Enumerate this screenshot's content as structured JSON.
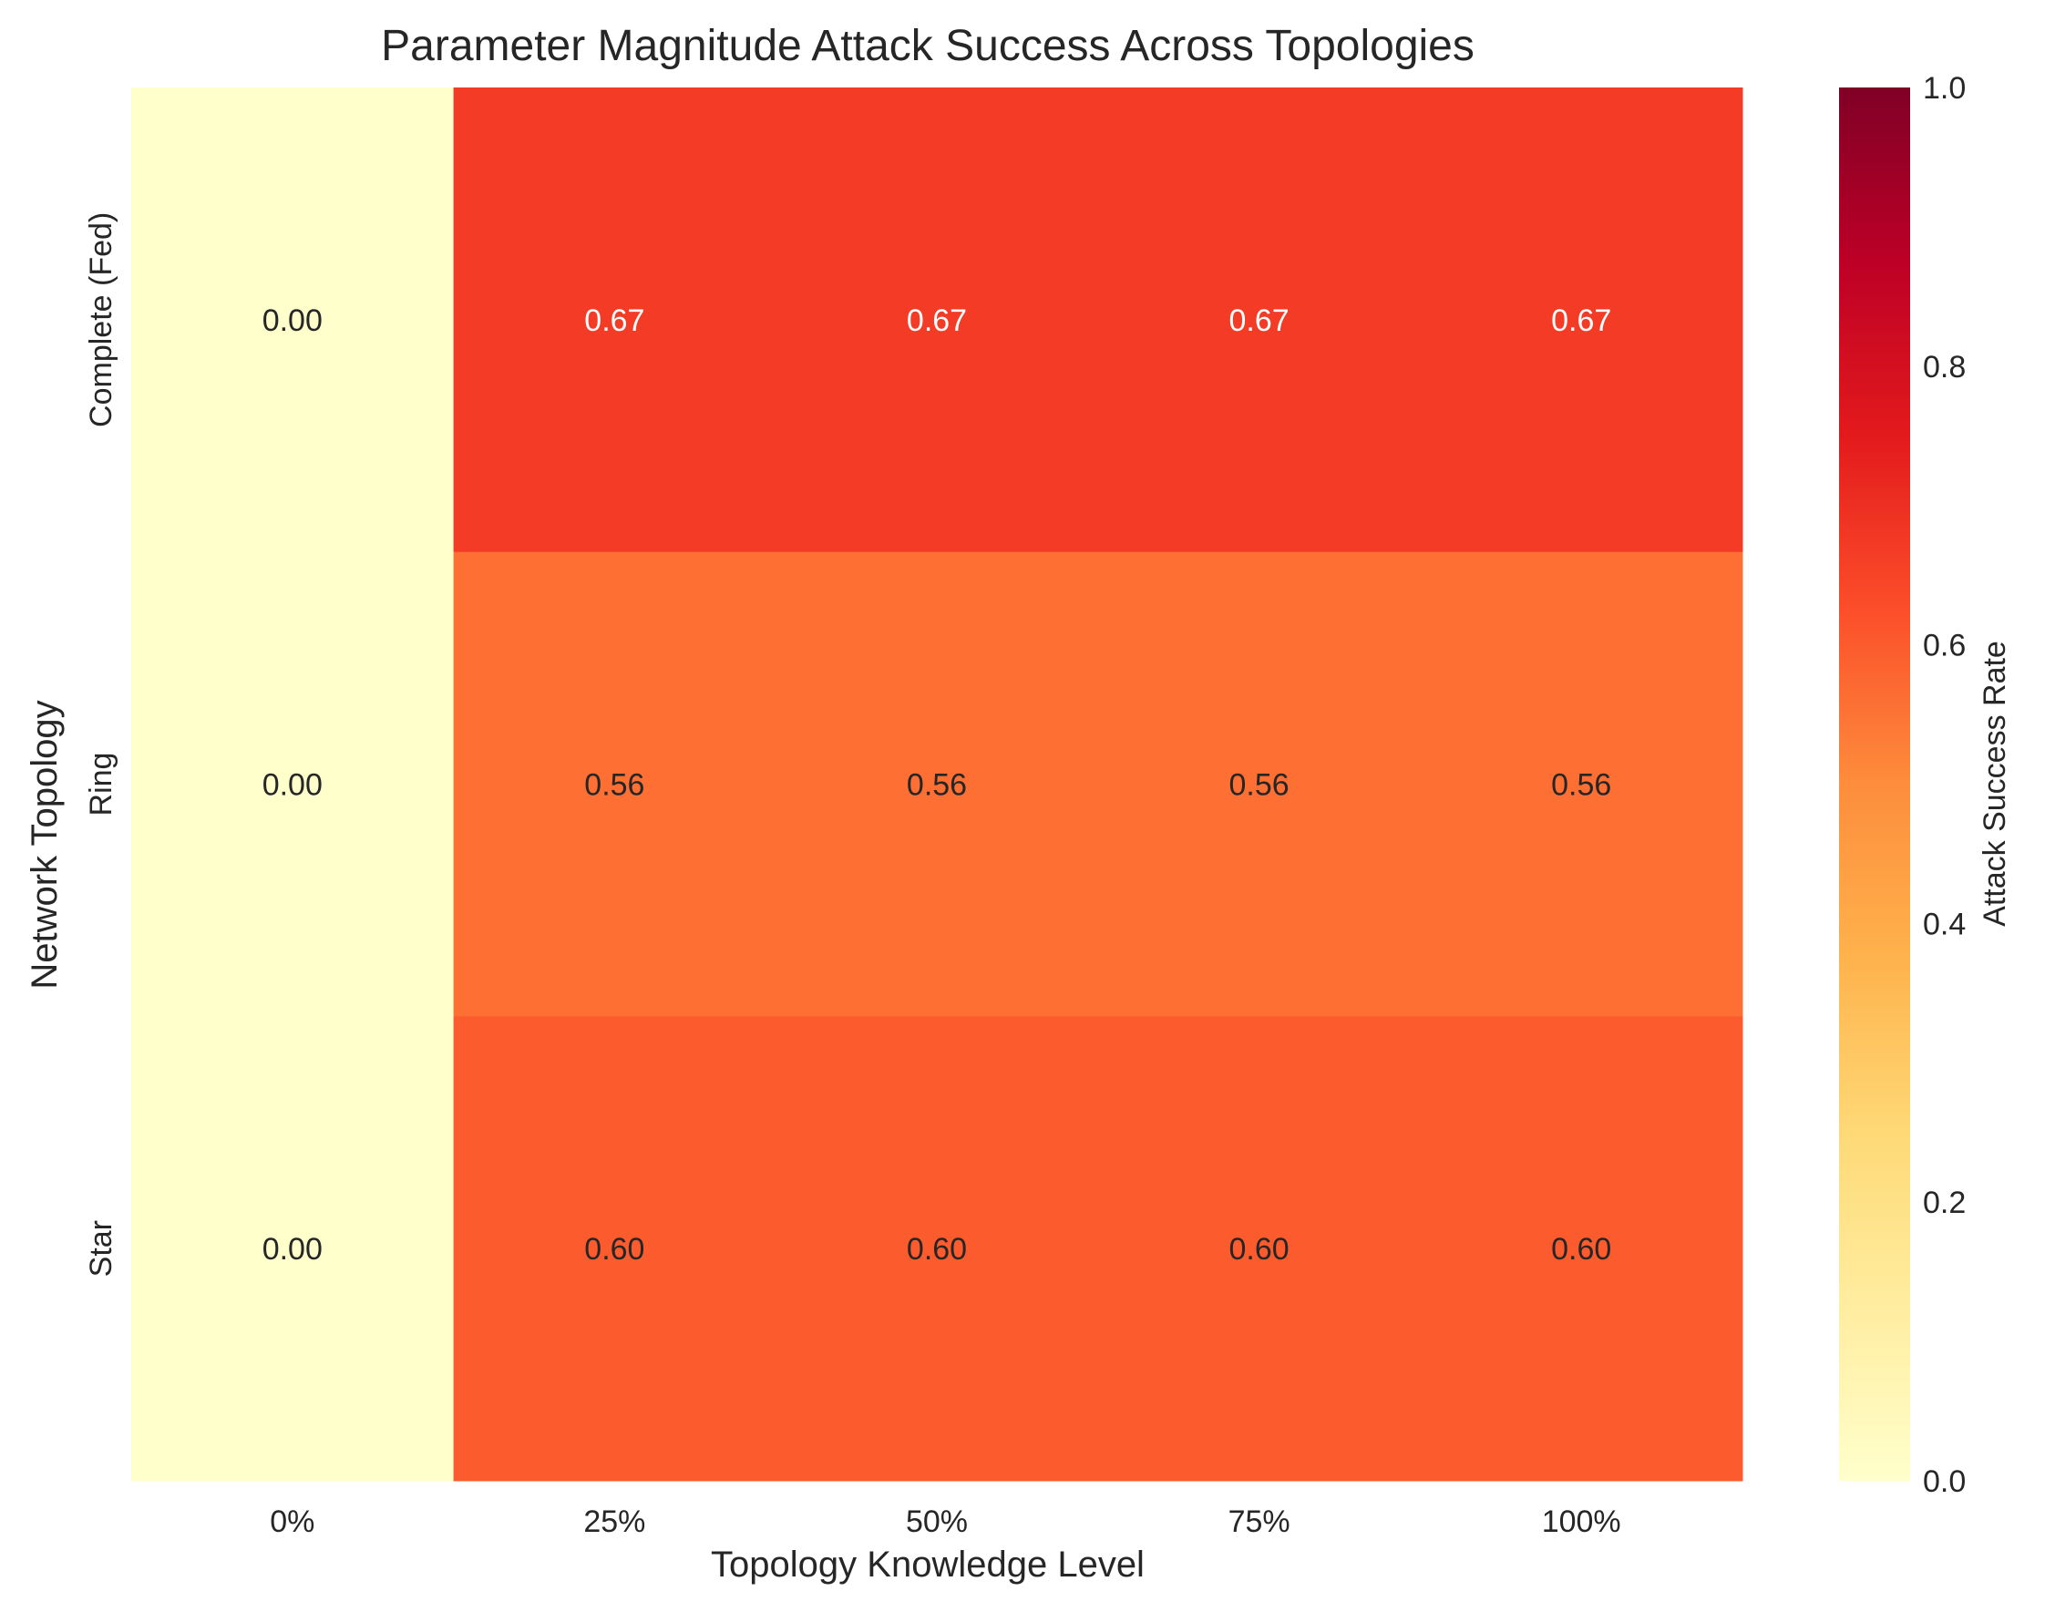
{
  "chart_data": {
    "type": "heatmap",
    "title": "Parameter Magnitude Attack Success Across Topologies",
    "xlabel": "Topology Knowledge Level",
    "ylabel": "Network Topology",
    "x_categories": [
      "0%",
      "25%",
      "50%",
      "75%",
      "100%"
    ],
    "y_categories": [
      "Complete (Fed)",
      "Ring",
      "Star"
    ],
    "values": [
      [
        0.0,
        0.67,
        0.67,
        0.67,
        0.67
      ],
      [
        0.0,
        0.56,
        0.56,
        0.56,
        0.56
      ],
      [
        0.0,
        0.6,
        0.6,
        0.6,
        0.6
      ]
    ],
    "colorbar": {
      "label": "Attack Success Rate",
      "range": [
        0.0,
        1.0
      ],
      "ticks": [
        "0.0",
        "0.2",
        "0.4",
        "0.6",
        "0.8",
        "1.0"
      ],
      "colormap": [
        "#ffffcc",
        "#ffeda0",
        "#fed976",
        "#feb24c",
        "#fd8d3c",
        "#fc4e2a",
        "#e31a1c",
        "#bd0026",
        "#800026"
      ]
    },
    "grid": false
  }
}
